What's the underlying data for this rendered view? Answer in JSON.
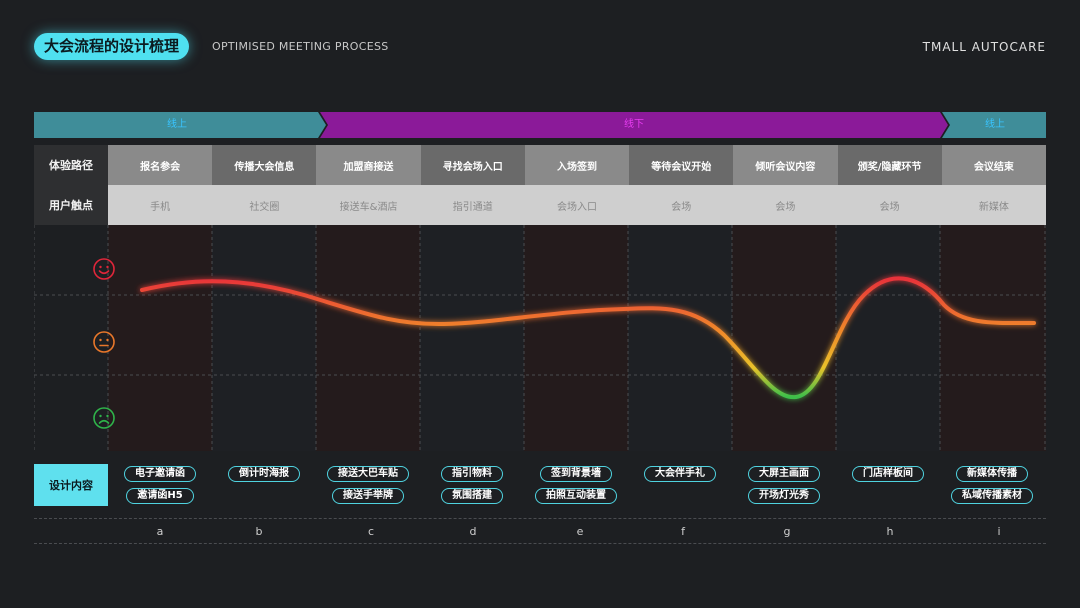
{
  "header": {
    "title": "大会流程的设计梳理",
    "subtitle": "OPTIMISED MEETING PROCESS",
    "brand": "TMALL AUTOCARE"
  },
  "phases": [
    {
      "label": "线上",
      "color": "#3f8d99",
      "text_color": "#39c4ff"
    },
    {
      "label": "线下",
      "color": "#8b1a99",
      "text_color": "#e63df0"
    },
    {
      "label": "线上",
      "color": "#3f8d99",
      "text_color": "#39c4ff"
    }
  ],
  "rows": {
    "experience_path_label": "体验路径",
    "touchpoint_label": "用户触点",
    "design_label": "设计内容"
  },
  "columns": [
    {
      "step": "报名参会",
      "touchpoint": "手机",
      "letter": "a",
      "design": [
        "电子邀请函",
        "邀请函H5"
      ]
    },
    {
      "step": "传播大会信息",
      "touchpoint": "社交圈",
      "letter": "b",
      "design": [
        "倒计时海报"
      ]
    },
    {
      "step": "加盟商接送",
      "touchpoint": "接送车&酒店",
      "letter": "c",
      "design": [
        "接送大巴车贴",
        "接送手举牌"
      ]
    },
    {
      "step": "寻找会场入口",
      "touchpoint": "指引通道",
      "letter": "d",
      "design": [
        "指引物料",
        "氛围搭建"
      ]
    },
    {
      "step": "入场签到",
      "touchpoint": "会场入口",
      "letter": "e",
      "design": [
        "签到背景墙",
        "拍照互动装置"
      ]
    },
    {
      "step": "等待会议开始",
      "touchpoint": "会场",
      "letter": "f",
      "design": [
        "大会伴手礼"
      ]
    },
    {
      "step": "倾听会议内容",
      "touchpoint": "会场",
      "letter": "g",
      "design": [
        "大屏主画面",
        "开场灯光秀"
      ]
    },
    {
      "step": "颁奖/隐藏环节",
      "touchpoint": "会场",
      "letter": "h",
      "design": [
        "门店样板间"
      ]
    },
    {
      "step": "会议结束",
      "touchpoint": "新媒体",
      "letter": "i",
      "design": [
        "新媒体传播",
        "私域传播素材"
      ]
    }
  ],
  "emotion_levels": [
    {
      "icon": "happy-face-icon",
      "color": "#e0263a"
    },
    {
      "icon": "neutral-face-icon",
      "color": "#e8772a"
    },
    {
      "icon": "sad-face-icon",
      "color": "#2fb34a"
    }
  ],
  "colors": {
    "accent": "#4fe0f0",
    "curve_high": "#e8323a",
    "curve_mid": "#f08a2a",
    "curve_low": "#3cbf4a"
  }
}
